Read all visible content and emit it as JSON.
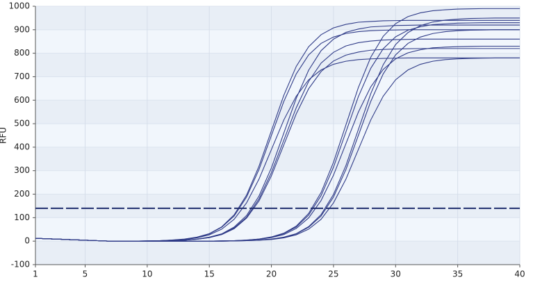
{
  "chart_data": {
    "type": "line",
    "y_label": "RFU",
    "x": [
      1,
      2,
      3,
      4,
      5,
      6,
      7,
      8,
      9,
      10,
      11,
      12,
      13,
      14,
      15,
      16,
      17,
      18,
      19,
      20,
      21,
      22,
      23,
      24,
      25,
      26,
      27,
      28,
      29,
      30,
      31,
      32,
      33,
      34,
      35,
      36,
      37,
      38,
      39,
      40
    ],
    "xlim": [
      1,
      40
    ],
    "xticks": [
      1,
      5,
      10,
      15,
      20,
      25,
      30,
      35,
      40
    ],
    "ylim": [
      -100,
      1000
    ],
    "yticks": [
      -100,
      0,
      100,
      200,
      300,
      400,
      500,
      600,
      700,
      800,
      900,
      1000
    ],
    "grid": true,
    "threshold": {
      "value": 140,
      "color": "#1f2d6e"
    },
    "series": [
      {
        "color": "#2e3a87",
        "values": [
          12,
          10,
          8,
          6,
          4,
          2,
          0,
          0,
          0,
          1,
          2,
          5,
          9,
          17,
          32,
          61,
          112,
          196,
          319,
          470,
          621,
          744,
          828,
          879,
          908,
          923,
          932,
          935,
          938,
          939,
          940,
          940,
          940,
          940,
          940,
          940,
          940,
          940,
          940,
          940
        ]
      },
      {
        "color": "#2e3a87",
        "values": [
          12,
          10,
          8,
          6,
          4,
          2,
          0,
          0,
          0,
          1,
          2,
          4,
          8,
          16,
          31,
          59,
          107,
          188,
          305,
          450,
          595,
          712,
          793,
          842,
          869,
          884,
          892,
          896,
          898,
          899,
          900,
          900,
          900,
          900,
          900,
          900,
          900,
          900,
          900,
          900
        ]
      },
      {
        "color": "#2e3a87",
        "values": [
          12,
          10,
          8,
          6,
          4,
          2,
          0,
          0,
          0,
          1,
          2,
          4,
          7,
          14,
          27,
          51,
          93,
          163,
          264,
          390,
          516,
          617,
          687,
          729,
          753,
          766,
          773,
          776,
          778,
          779,
          780,
          780,
          780,
          780,
          780,
          780,
          780,
          780,
          780,
          780
        ]
      },
      {
        "color": "#2e3a87",
        "values": [
          12,
          10,
          8,
          6,
          4,
          2,
          0,
          0,
          0,
          0,
          1,
          2,
          4,
          9,
          17,
          31,
          60,
          109,
          192,
          312,
          460,
          608,
          728,
          811,
          860,
          889,
          903,
          912,
          915,
          918,
          919,
          920,
          920,
          920,
          920,
          920,
          920,
          920,
          920,
          920
        ]
      },
      {
        "color": "#2e3a87",
        "values": [
          12,
          10,
          8,
          6,
          4,
          2,
          0,
          0,
          0,
          0,
          1,
          2,
          4,
          8,
          15,
          29,
          56,
          102,
          180,
          292,
          430,
          568,
          680,
          758,
          804,
          831,
          845,
          852,
          856,
          858,
          859,
          860,
          860,
          860,
          860,
          860,
          860,
          860,
          860,
          860
        ]
      },
      {
        "color": "#2e3a87",
        "values": [
          12,
          10,
          8,
          6,
          4,
          2,
          0,
          0,
          0,
          0,
          1,
          2,
          4,
          8,
          15,
          28,
          53,
          98,
          171,
          278,
          410,
          542,
          649,
          722,
          767,
          792,
          805,
          813,
          816,
          818,
          819,
          820,
          820,
          820,
          820,
          820,
          820,
          820,
          820,
          820
        ]
      },
      {
        "color": "#2e3a87",
        "values": [
          12,
          10,
          8,
          6,
          4,
          2,
          0,
          0,
          0,
          0,
          0,
          0,
          0,
          0,
          0,
          1,
          2,
          5,
          9,
          18,
          34,
          64,
          118,
          207,
          336,
          495,
          654,
          783,
          872,
          926,
          956,
          972,
          981,
          985,
          988,
          989,
          990,
          990,
          990,
          990
        ]
      },
      {
        "color": "#2e3a87",
        "values": [
          12,
          10,
          8,
          6,
          4,
          2,
          0,
          0,
          0,
          0,
          0,
          0,
          0,
          0,
          0,
          1,
          2,
          4,
          9,
          17,
          32,
          60,
          111,
          194,
          315,
          465,
          615,
          736,
          819,
          870,
          898,
          913,
          922,
          925,
          928,
          929,
          930,
          930,
          930,
          930
        ]
      },
      {
        "color": "#2e3a87",
        "values": [
          12,
          10,
          8,
          6,
          4,
          2,
          0,
          0,
          0,
          0,
          0,
          0,
          0,
          0,
          0,
          1,
          2,
          4,
          8,
          15,
          28,
          54,
          99,
          173,
          281,
          415,
          549,
          657,
          731,
          776,
          802,
          815,
          823,
          826,
          828,
          829,
          830,
          830,
          830,
          830
        ]
      },
      {
        "color": "#2e3a87",
        "values": [
          12,
          10,
          8,
          6,
          4,
          2,
          0,
          0,
          0,
          0,
          0,
          0,
          0,
          0,
          0,
          0,
          1,
          2,
          5,
          9,
          17,
          32,
          62,
          113,
          199,
          322,
          475,
          628,
          751,
          837,
          888,
          918,
          933,
          941,
          945,
          948,
          949,
          950,
          950,
          950
        ]
      },
      {
        "color": "#2e3a87",
        "values": [
          12,
          10,
          8,
          6,
          4,
          2,
          0,
          0,
          0,
          0,
          0,
          0,
          0,
          0,
          0,
          0,
          1,
          2,
          4,
          8,
          16,
          31,
          59,
          107,
          188,
          305,
          450,
          595,
          712,
          793,
          842,
          869,
          884,
          892,
          896,
          898,
          899,
          900,
          900,
          900
        ]
      },
      {
        "color": "#2e3a87",
        "values": [
          12,
          10,
          8,
          6,
          4,
          2,
          0,
          0,
          0,
          0,
          0,
          0,
          0,
          0,
          0,
          0,
          1,
          2,
          4,
          7,
          14,
          27,
          51,
          93,
          163,
          264,
          390,
          516,
          617,
          687,
          729,
          753,
          766,
          773,
          776,
          778,
          779,
          780,
          780,
          780
        ]
      }
    ]
  }
}
